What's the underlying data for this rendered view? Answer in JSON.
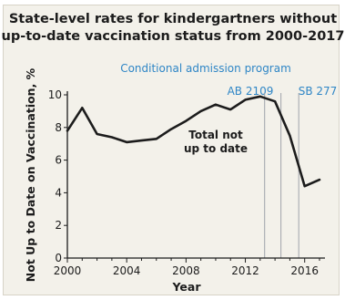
{
  "chart_data": {
    "type": "line",
    "title_lines": [
      "State-level rates for kindergartners without",
      "up-to-date vaccination status from 2000-2017"
    ],
    "xlabel": "Year",
    "ylabel": "Not Up to Date on Vaccination, %",
    "xlim": [
      2000,
      2017
    ],
    "ylim": [
      0,
      10
    ],
    "x_ticks": [
      2000,
      2004,
      2008,
      2012,
      2016
    ],
    "y_ticks": [
      0,
      2,
      4,
      6,
      8,
      10
    ],
    "grid": false,
    "series": [
      {
        "name": "Total not up to date",
        "x": [
          2000,
          2001,
          2002,
          2003,
          2004,
          2005,
          2006,
          2007,
          2008,
          2009,
          2010,
          2011,
          2012,
          2013,
          2014,
          2015,
          2016,
          2017
        ],
        "y": [
          7.8,
          9.2,
          7.6,
          7.4,
          7.1,
          7.2,
          7.3,
          7.9,
          8.4,
          9.0,
          9.4,
          9.1,
          9.7,
          9.9,
          9.6,
          7.5,
          4.4,
          4.8
        ]
      }
    ],
    "series_label_lines": [
      "Total not",
      "up to date"
    ],
    "annotations": {
      "conditional_admission": "Conditional admission program",
      "ab2109": "AB 2109",
      "sb277": "SB 277"
    },
    "reference_lines": [
      {
        "id": "ab2109",
        "x": 2013.3
      },
      {
        "id": "ab2109b",
        "x": 2014.4
      },
      {
        "id": "sb277",
        "x": 2015.6
      }
    ],
    "colors": {
      "background": "#f3f1ea",
      "line": "#1c1c1c",
      "annotation": "#2f86c6",
      "reference_line": "#9fa3ab"
    }
  }
}
